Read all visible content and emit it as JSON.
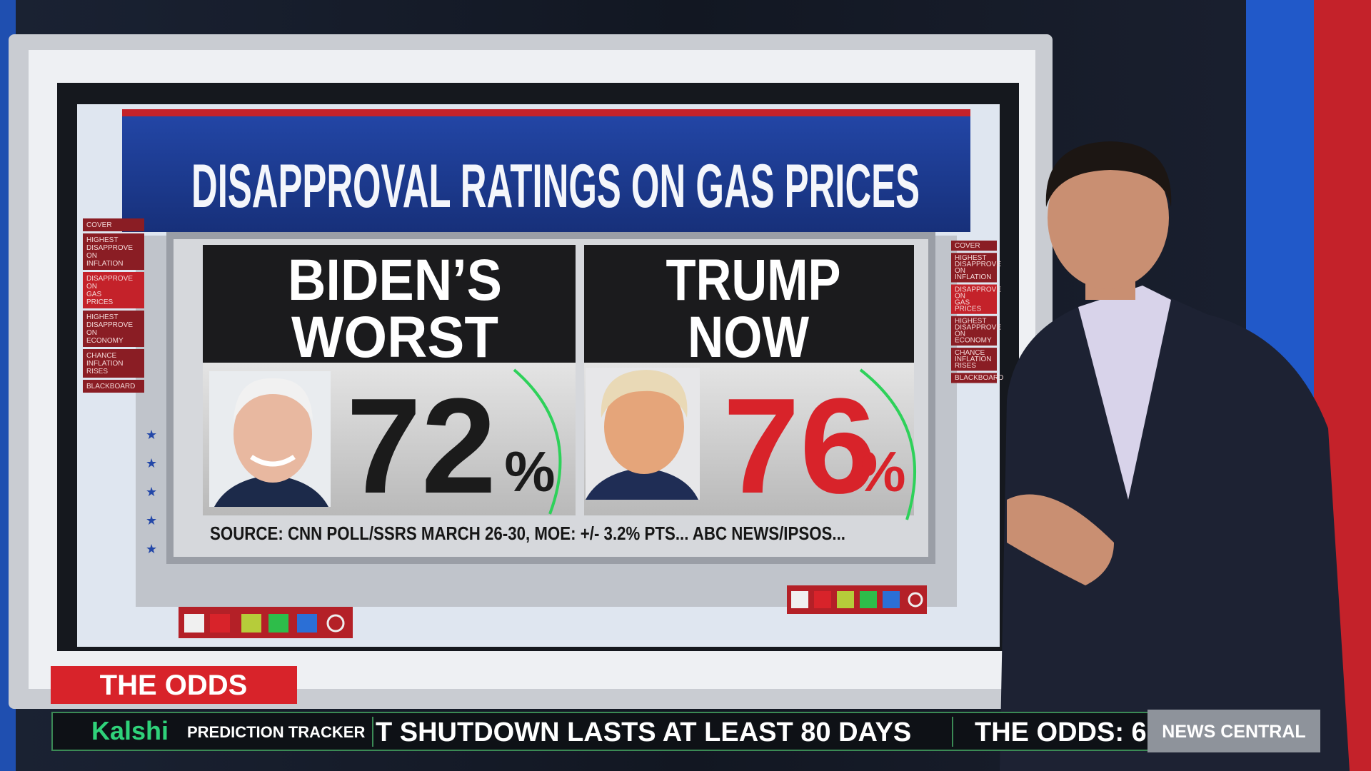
{
  "header": {
    "title": "DISAPPROVAL RATINGS ON GAS PRICES"
  },
  "panels": [
    {
      "label_lines": [
        "BIDEN’S",
        "WORST"
      ],
      "value": "72",
      "unit": "%"
    },
    {
      "label_lines": [
        "TRUMP",
        "NOW"
      ],
      "value": "76",
      "unit": "%"
    }
  ],
  "source": "SOURCE: CNN POLL/SSRS MARCH 26-30, MOE: +/- 3.2% PTS... ABC NEWS/IPSOS...",
  "menu": [
    "COVER",
    "HIGHEST DISAPPROVE ON INFLATION",
    "DISAPPROVE ON GAS PRICES",
    "HIGHEST DISAPPROVE ON ECONOMY",
    "CHANCE INFLATION RISES",
    "BLACKBOARD"
  ],
  "lower_third": {
    "segment": "THE ODDS",
    "sponsor": "Kalshi",
    "tracker": "PREDICTION TRACKER",
    "ticker": [
      "T SHUTDOWN LASTS AT LEAST 80 DAYS",
      "THE ODDS: 6"
    ],
    "network": "NEWS CENTRAL"
  }
}
